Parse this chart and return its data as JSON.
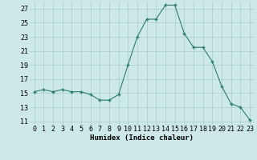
{
  "x": [
    0,
    1,
    2,
    3,
    4,
    5,
    6,
    7,
    8,
    9,
    10,
    11,
    12,
    13,
    14,
    15,
    16,
    17,
    18,
    19,
    20,
    21,
    22,
    23
  ],
  "y": [
    15.2,
    15.5,
    15.2,
    15.5,
    15.2,
    15.2,
    14.8,
    14.0,
    14.0,
    14.8,
    19.0,
    23.0,
    25.5,
    25.5,
    27.5,
    27.5,
    23.5,
    21.5,
    21.5,
    19.5,
    16.0,
    13.5,
    13.0,
    11.2
  ],
  "line_color": "#2e7d6e",
  "marker_color": "#2e7d6e",
  "bg_color": "#cce8e8",
  "grid_color": "#aacccc",
  "xlabel": "Humidex (Indice chaleur)",
  "ylim": [
    10.5,
    28.0
  ],
  "yticks": [
    11,
    13,
    15,
    17,
    19,
    21,
    23,
    25,
    27
  ],
  "xticks": [
    0,
    1,
    2,
    3,
    4,
    5,
    6,
    7,
    8,
    9,
    10,
    11,
    12,
    13,
    14,
    15,
    16,
    17,
    18,
    19,
    20,
    21,
    22,
    23
  ],
  "axis_fontsize": 6.5,
  "tick_fontsize": 6.0
}
